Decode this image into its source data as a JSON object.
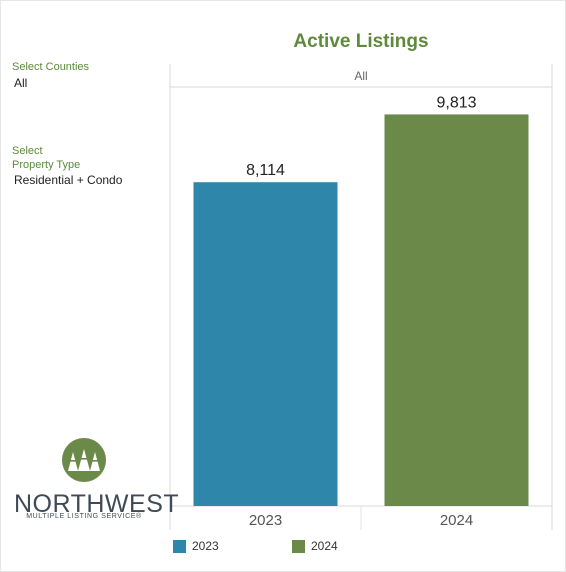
{
  "filters": {
    "counties": {
      "label": "Select Counties",
      "value": "All"
    },
    "property_type": {
      "label_line1": "Select",
      "label_line2": "Property Type",
      "value": "Residential + Condo"
    }
  },
  "logo": {
    "name": "NORTHWEST",
    "subtitle": "MULTIPLE LISTING SERVICE®",
    "icon": "tree-emblem-icon"
  },
  "colors": {
    "accent": "#5f8a3e",
    "series_2023": "#2e87aa",
    "series_2024": "#6b8a4a"
  },
  "chart_data": {
    "type": "bar",
    "title": "Active Listings",
    "panel_header": "All",
    "categories": [
      "2023",
      "2024"
    ],
    "values": [
      8114,
      9813
    ],
    "value_labels": [
      "8,114",
      "9,813"
    ],
    "colors": [
      "#2e87aa",
      "#6b8a4a"
    ],
    "ylim": [
      0,
      10500
    ],
    "grid": false,
    "legend": {
      "position": "bottom",
      "entries": [
        "2023",
        "2024"
      ]
    }
  }
}
